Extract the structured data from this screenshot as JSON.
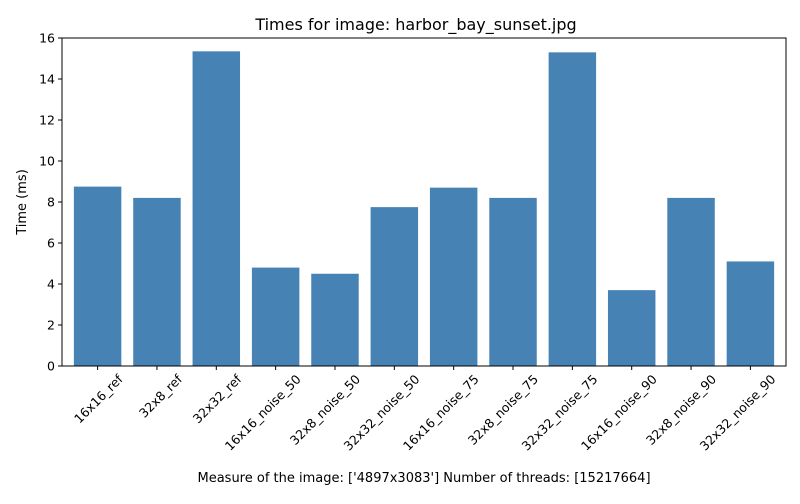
{
  "chart_data": {
    "type": "bar",
    "title": "Times for image: harbor_bay_sunset.jpg",
    "xlabel": "Measure of the image: ['4897x3083'] Number of threads: [15217664]",
    "ylabel": "Time (ms)",
    "ylim": [
      0,
      16
    ],
    "yticks": [
      0,
      2,
      4,
      6,
      8,
      10,
      12,
      14,
      16
    ],
    "grid": false,
    "bar_color": "#4682b4",
    "categories": [
      "16x16_ref",
      "32x8_ref",
      "32x32_ref",
      "16x16_noise_50",
      "32x8_noise_50",
      "32x32_noise_50",
      "16x16_noise_75",
      "32x8_noise_75",
      "32x32_noise_75",
      "16x16_noise_90",
      "32x8_noise_90",
      "32x32_noise_90"
    ],
    "values": [
      8.75,
      8.2,
      15.35,
      4.8,
      4.5,
      7.75,
      8.7,
      8.2,
      15.3,
      3.7,
      8.2,
      5.1
    ]
  }
}
